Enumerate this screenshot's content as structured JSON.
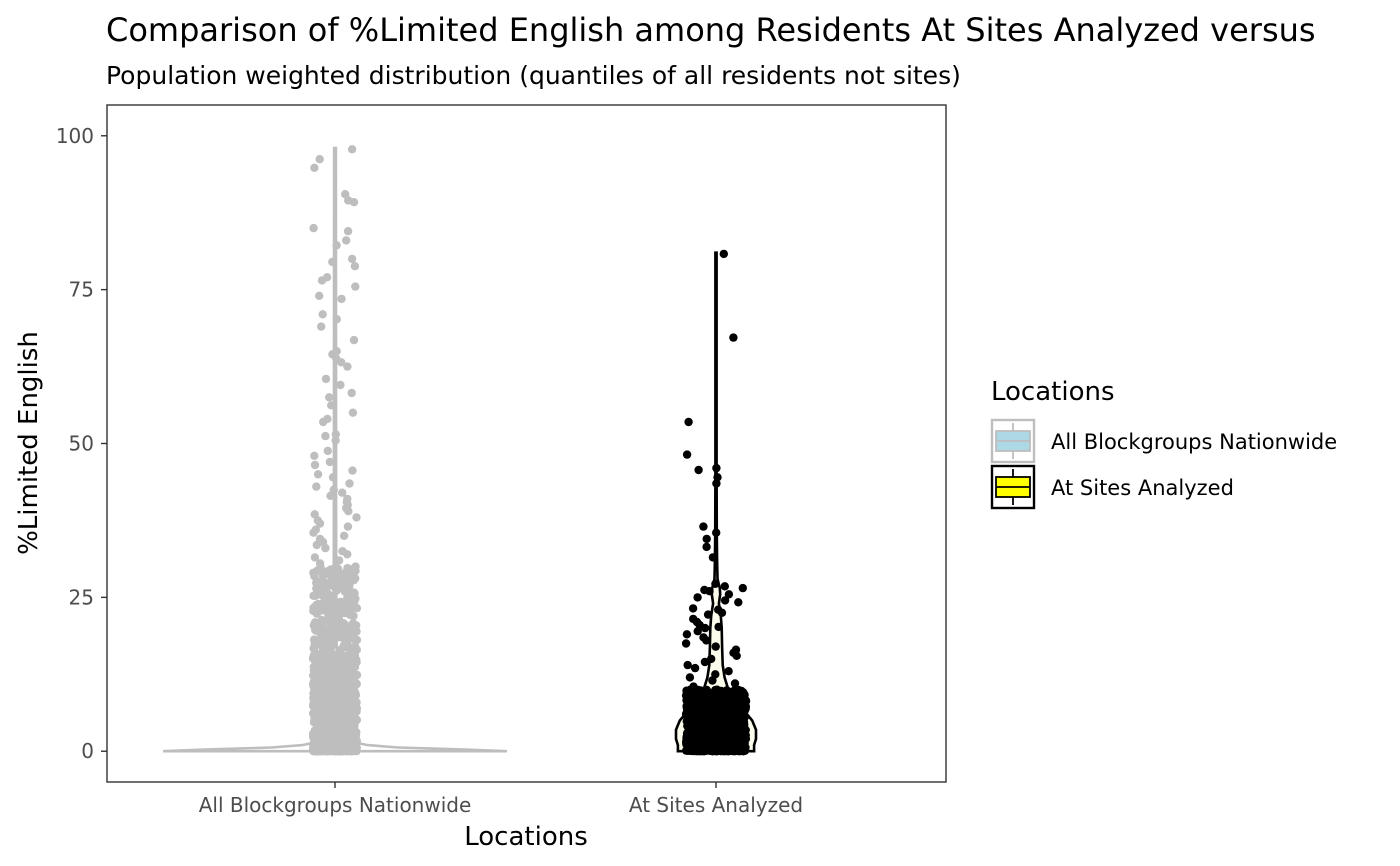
{
  "chart_data": {
    "type": "violin",
    "title": "Comparison of %Limited English among Residents At Sites Analyzed versus",
    "subtitle": "Population weighted distribution (quantiles of all residents not sites)",
    "xlabel": "Locations",
    "ylabel": "%Limited English",
    "categories": [
      "All Blockgroups Nationwide",
      "At Sites Analyzed"
    ],
    "ylim": [
      -5,
      105
    ],
    "yticks": [
      0,
      25,
      50,
      75,
      100
    ],
    "grid": false,
    "legend": {
      "title": "Locations",
      "position": "right",
      "entries": [
        {
          "label": "All Blockgroups Nationwide",
          "fill": "#add8e6",
          "stroke": "#bebebe"
        },
        {
          "label": "At Sites Analyzed",
          "fill": "#ffff00",
          "stroke": "#000000"
        }
      ]
    },
    "series": [
      {
        "name": "All Blockgroups Nationwide",
        "point_color": "#bebebe",
        "violin_stroke": "#bebebe",
        "violin_fill": "#ffffff",
        "max": 98,
        "violin_profile": [
          [
            0,
            0.95
          ],
          [
            0.3,
            0.7
          ],
          [
            0.6,
            0.35
          ],
          [
            1,
            0.18
          ],
          [
            1.5,
            0.1
          ],
          [
            2.5,
            0.06
          ],
          [
            4,
            0.035
          ],
          [
            6,
            0.02
          ],
          [
            10,
            0.012
          ],
          [
            20,
            0.008
          ],
          [
            40,
            0.006
          ],
          [
            98,
            0.005
          ]
        ],
        "outliers": [
          97.8,
          96.2,
          94.8,
          90.5,
          89.5,
          89.2,
          85,
          84.5,
          83,
          82.2,
          80,
          79.5,
          78.8,
          77,
          76.5,
          75.5,
          74,
          73.5,
          71,
          70.2,
          69,
          66.8,
          65,
          64.5,
          63.8,
          63.2,
          62.5,
          60.5,
          59.5,
          58.2,
          57.5,
          56.2,
          55,
          54,
          53.5,
          51.5,
          51.2,
          50.5,
          48.8,
          48,
          47,
          46.5,
          45.6,
          45,
          44.5,
          43.5,
          43,
          42.5,
          42,
          41.5,
          41,
          40.5,
          40,
          39.5,
          39,
          38.5,
          38,
          37.5,
          37,
          36.5,
          36,
          35.5,
          35,
          34.5,
          34,
          33.5,
          33,
          32.5,
          32,
          31.5,
          31,
          30.5,
          30
        ]
      },
      {
        "name": "At Sites Analyzed",
        "point_color": "#000000",
        "violin_stroke": "#000000",
        "violin_fill": "#fcfcec",
        "max": 81,
        "violin_profile": [
          [
            0,
            0.2
          ],
          [
            1,
            0.2
          ],
          [
            2,
            0.21
          ],
          [
            3.5,
            0.21
          ],
          [
            5,
            0.19
          ],
          [
            6.5,
            0.15
          ],
          [
            8,
            0.1
          ],
          [
            10,
            0.065
          ],
          [
            12,
            0.045
          ],
          [
            14,
            0.035
          ],
          [
            17,
            0.032
          ],
          [
            20,
            0.03
          ],
          [
            22,
            0.025
          ],
          [
            24,
            0.015
          ],
          [
            25.5,
            0.022
          ],
          [
            26.5,
            0.02
          ],
          [
            28,
            0.008
          ],
          [
            31,
            0.006
          ],
          [
            35,
            0.004
          ],
          [
            45,
            0.003
          ],
          [
            81,
            0.003
          ]
        ],
        "outliers": [
          80.8,
          67.2,
          53.5,
          48.2,
          46,
          45.7,
          44.5,
          43.5,
          36.5,
          35.5,
          34.5,
          33.2,
          31.5,
          27.2,
          26.8,
          26.5,
          26.2,
          26,
          25.5,
          25,
          24.5,
          24.2,
          23.2,
          23,
          22.5,
          22.2,
          21.5,
          21,
          20.5,
          20.2,
          20,
          19.5,
          19,
          18.5,
          18,
          17.5,
          17,
          16.5,
          16,
          15.5,
          15,
          14.5,
          14,
          13.5,
          13,
          12.5,
          12,
          11.5,
          11,
          10.5,
          10
        ]
      }
    ]
  }
}
